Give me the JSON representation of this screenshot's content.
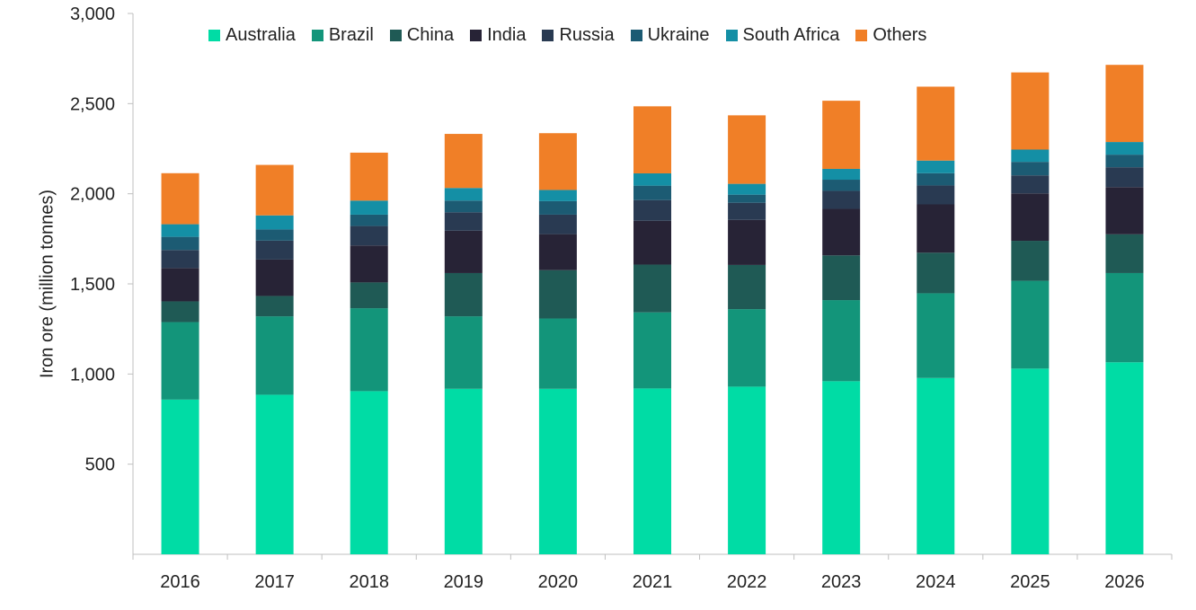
{
  "chart_data": {
    "type": "bar",
    "stacked": true,
    "title": "",
    "xlabel": "",
    "ylabel": "Iron ore (million tonnes)",
    "ylim": [
      0,
      3000
    ],
    "yticks": [
      500,
      1000,
      1500,
      2000,
      2500,
      3000
    ],
    "ytick_labels": [
      "500",
      "1,000",
      "1,500",
      "2,000",
      "2,500",
      "3,000"
    ],
    "grid": false,
    "legend_position": "top",
    "categories": [
      "2016",
      "2017",
      "2018",
      "2019",
      "2020",
      "2021",
      "2022",
      "2023",
      "2024",
      "2025",
      "2026"
    ],
    "series": [
      {
        "name": "Australia",
        "color": "#00DCA5",
        "values": [
          858,
          885,
          905,
          918,
          918,
          920,
          930,
          960,
          978,
          1030,
          1065
        ]
      },
      {
        "name": "Brazil",
        "color": "#13957A",
        "values": [
          430,
          435,
          460,
          402,
          390,
          422,
          430,
          450,
          470,
          487,
          495
        ]
      },
      {
        "name": "China",
        "color": "#1F5A55",
        "values": [
          115,
          113,
          143,
          240,
          268,
          265,
          245,
          248,
          225,
          222,
          215
        ]
      },
      {
        "name": "India",
        "color": "#272336",
        "values": [
          185,
          202,
          205,
          235,
          200,
          243,
          250,
          258,
          268,
          263,
          262
        ]
      },
      {
        "name": "Russia",
        "color": "#293A52",
        "values": [
          100,
          105,
          108,
          102,
          108,
          115,
          95,
          100,
          105,
          100,
          110
        ]
      },
      {
        "name": "Ukraine",
        "color": "#1C5B73",
        "values": [
          73,
          62,
          63,
          65,
          75,
          80,
          45,
          62,
          68,
          75,
          70
        ]
      },
      {
        "name": "South Africa",
        "color": "#148FA5",
        "values": [
          70,
          78,
          78,
          70,
          62,
          68,
          60,
          60,
          70,
          68,
          70
        ]
      },
      {
        "name": "Others",
        "color": "#F07F27",
        "values": [
          283,
          280,
          266,
          300,
          315,
          372,
          380,
          378,
          410,
          428,
          428
        ]
      }
    ]
  }
}
